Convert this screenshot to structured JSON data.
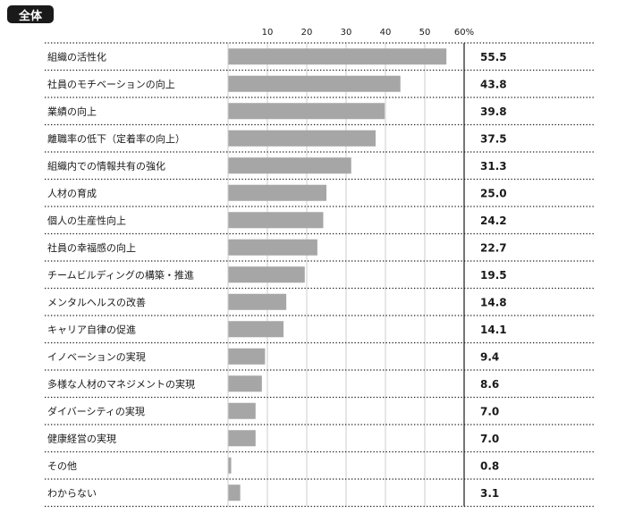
{
  "header": {
    "badge": "全体"
  },
  "colors": {
    "bar": "#a6a6a6",
    "axis": "#1a1a1a",
    "grid": "#cccccc"
  },
  "chart_data": {
    "type": "bar",
    "orientation": "horizontal",
    "title": "",
    "xlabel": "",
    "ylabel": "",
    "xlim": [
      0,
      60
    ],
    "ticks": [
      {
        "value": 10,
        "label": "10"
      },
      {
        "value": 20,
        "label": "20"
      },
      {
        "value": 30,
        "label": "30"
      },
      {
        "value": 40,
        "label": "40"
      },
      {
        "value": 50,
        "label": "50"
      },
      {
        "value": 60,
        "label": "60%"
      }
    ],
    "grid": true,
    "categories": [
      "組織の活性化",
      "社員のモチベーションの向上",
      "業績の向上",
      "離職率の低下（定着率の向上）",
      "組織内での情報共有の強化",
      "人材の育成",
      "個人の生産性向上",
      "社員の幸福感の向上",
      "チームビルディングの構築・推進",
      "メンタルヘルスの改善",
      "キャリア自律の促進",
      "イノベーションの実現",
      "多様な人材のマネジメントの実現",
      "ダイバーシティの実現",
      "健康経営の実現",
      "その他",
      "わからない"
    ],
    "values": [
      55.5,
      43.8,
      39.8,
      37.5,
      31.3,
      25.0,
      24.2,
      22.7,
      19.5,
      14.8,
      14.1,
      9.4,
      8.6,
      7.0,
      7.0,
      0.8,
      3.1
    ],
    "value_labels": [
      "55.5",
      "43.8",
      "39.8",
      "37.5",
      "31.3",
      "25.0",
      "24.2",
      "22.7",
      "19.5",
      "14.8",
      "14.1",
      "9.4",
      "8.6",
      "7.0",
      "7.0",
      "0.8",
      "3.1"
    ]
  }
}
